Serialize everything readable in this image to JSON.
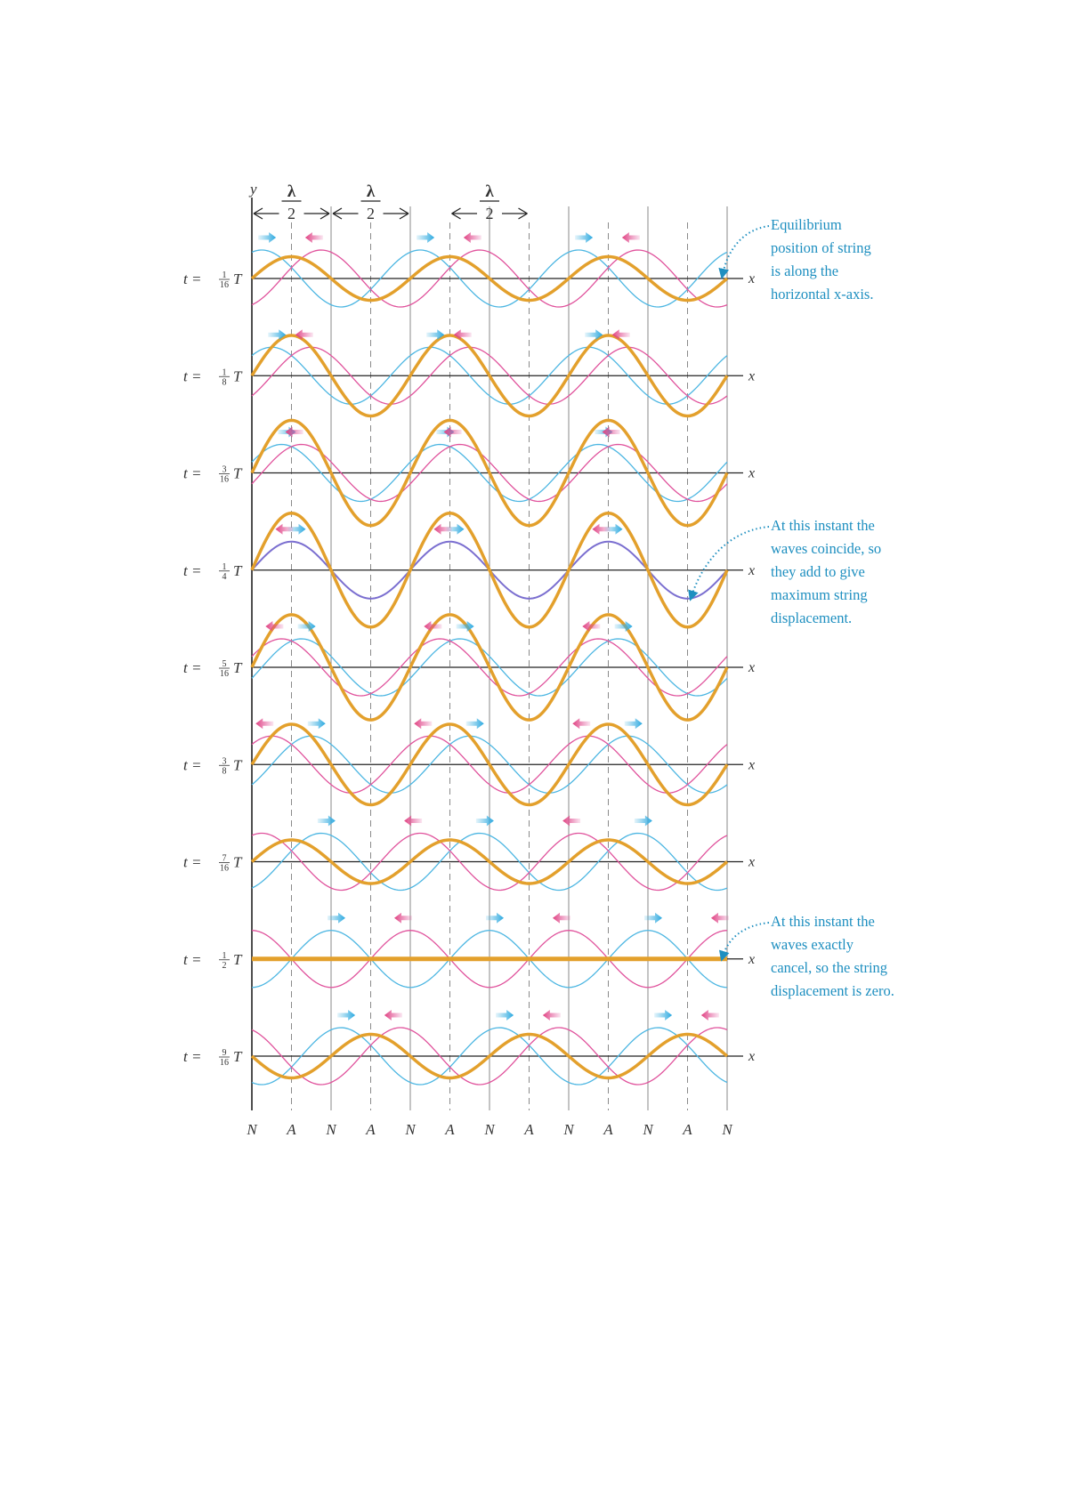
{
  "axis_labels": {
    "y": "y",
    "x": "x"
  },
  "dimension_labels": [
    {
      "num": "λ",
      "den": "2"
    },
    {
      "num": "λ",
      "den": "2"
    },
    {
      "num": "λ",
      "den": "2"
    }
  ],
  "rows": [
    {
      "prefix": "t =",
      "num": "1",
      "den": "16",
      "suffix": "T",
      "t": 0.0625
    },
    {
      "prefix": "t =",
      "num": "1",
      "den": "8",
      "suffix": "T",
      "t": 0.125
    },
    {
      "prefix": "t =",
      "num": "3",
      "den": "16",
      "suffix": "T",
      "t": 0.1875
    },
    {
      "prefix": "t =",
      "num": "1",
      "den": "4",
      "suffix": "T",
      "t": 0.25
    },
    {
      "prefix": "t =",
      "num": "5",
      "den": "16",
      "suffix": "T",
      "t": 0.3125
    },
    {
      "prefix": "t =",
      "num": "3",
      "den": "8",
      "suffix": "T",
      "t": 0.375
    },
    {
      "prefix": "t =",
      "num": "7",
      "den": "16",
      "suffix": "T",
      "t": 0.4375
    },
    {
      "prefix": "t =",
      "num": "1",
      "den": "2",
      "suffix": "T",
      "t": 0.5
    },
    {
      "prefix": "t =",
      "num": "9",
      "den": "16",
      "suffix": "T",
      "t": 0.5625
    }
  ],
  "node_labels": [
    "N",
    "A",
    "N",
    "A",
    "N",
    "A",
    "N",
    "A",
    "N",
    "A",
    "N",
    "A",
    "N"
  ],
  "annotations": [
    {
      "lines": [
        "Equilibrium",
        "position of string",
        "is along the",
        "horizontal x-axis."
      ]
    },
    {
      "lines": [
        "At this instant the",
        "waves coincide, so",
        "they add to give",
        "maximum string",
        "displacement."
      ]
    },
    {
      "lines": [
        "At this instant the",
        "waves exactly",
        "cancel, so the string",
        "displacement is zero."
      ]
    }
  ],
  "colors": {
    "resultant": "#e3a02c",
    "rightward_wave": "#4cb6e2",
    "leftward_wave": "#e0529c",
    "coincident_wave": "#7b6fd0",
    "annotation": "#1e8fc0",
    "axis": "#222222",
    "grid": "#8a8a8a"
  }
}
